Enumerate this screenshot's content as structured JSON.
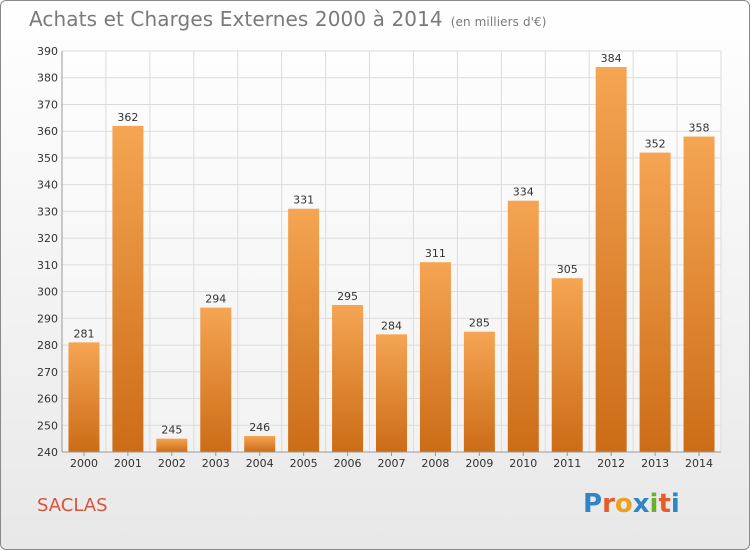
{
  "header": {
    "title": "Achats et Charges Externes 2000 à 2014",
    "unit": "(en milliers d'€)"
  },
  "footer": {
    "commune": "SACLAS",
    "logo_letters": [
      "P",
      "r",
      "o",
      "x",
      "i",
      "t",
      "i"
    ]
  },
  "colors": {
    "bar_light": "#f5a553",
    "bar_dark": "#cc6c17",
    "grid": "#dcdcdc",
    "axis_text": "#333333",
    "title": "#7a7a7a",
    "commune": "#d9533b",
    "logo": [
      "#2e86c8",
      "#e65c2b",
      "#f0a020",
      "#2e86c8",
      "#6ab02e",
      "#e65c2b",
      "#2e86c8"
    ]
  },
  "chart_data": {
    "type": "bar",
    "title": "Achats et Charges Externes 2000 à 2014",
    "subtitle": "(en milliers d'€)",
    "categories": [
      "2000",
      "2001",
      "2002",
      "2003",
      "2004",
      "2005",
      "2006",
      "2007",
      "2008",
      "2009",
      "2010",
      "2011",
      "2012",
      "2013",
      "2014"
    ],
    "values": [
      281,
      362,
      245,
      294,
      246,
      331,
      295,
      284,
      311,
      285,
      334,
      305,
      384,
      352,
      358
    ],
    "ylim": [
      240,
      390
    ],
    "yticks": [
      240,
      250,
      260,
      270,
      280,
      290,
      300,
      310,
      320,
      330,
      340,
      350,
      360,
      370,
      380,
      390
    ],
    "grid": true,
    "legend": "none",
    "xlabel": "",
    "ylabel": ""
  }
}
